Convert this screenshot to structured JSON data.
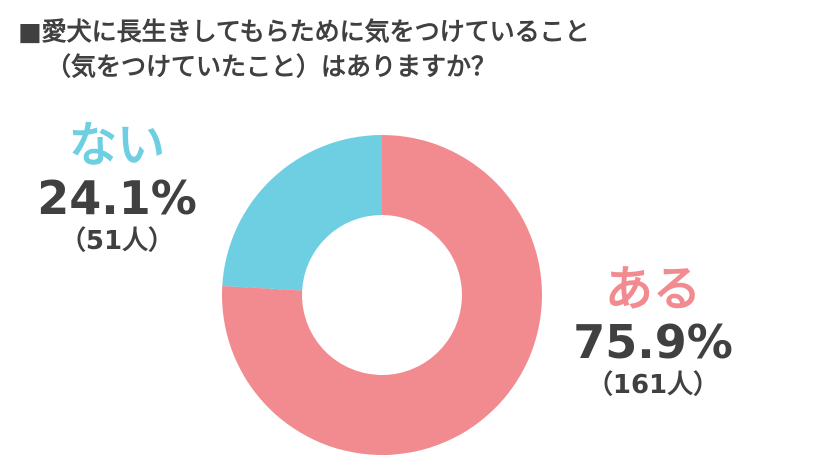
{
  "title": {
    "line1": "■愛犬に長生きしてもらために気をつけていること",
    "line2": "（気をつけていたこと）はありますか？"
  },
  "chart_data": {
    "type": "pie",
    "donut": true,
    "title": "■愛犬に長生きしてもらために気をつけていること（気をつけていたこと）はありますか？",
    "categories": [
      "ある",
      "ない"
    ],
    "values": [
      75.9,
      24.1
    ],
    "counts": [
      161,
      51
    ],
    "colors": [
      "#f28b8f",
      "#6fcfe2"
    ],
    "labels": [
      {
        "category": "ある",
        "percent": "75.9%",
        "count": "（161人）",
        "color": "#f28b8f"
      },
      {
        "category": "ない",
        "percent": "24.1%",
        "count": "（51人）",
        "color": "#6fcfe2"
      }
    ]
  }
}
